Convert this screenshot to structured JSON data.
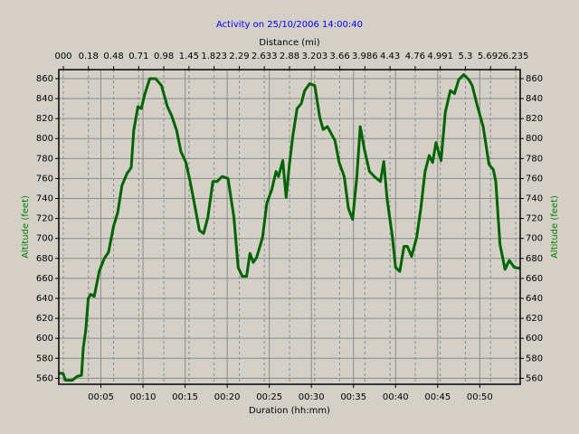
{
  "chart_data": {
    "type": "line",
    "title": "Activity on 25/10/2006 14:00:40",
    "xlabel": "Duration (hh:mm)",
    "x2label": "Distance (mi)",
    "ylabel": "Altitude (feet)",
    "y2label": "Altitude (feet)",
    "x2ticks": [
      "000",
      "0.18",
      "0.48",
      "0.71",
      "0.98",
      "1.45",
      "1.823",
      "2.29",
      "2.633",
      "2.88",
      "3.203",
      "3.66",
      "3.986",
      "4.43",
      "4.76",
      "4.991",
      "5.3",
      "5.692",
      "6.235"
    ],
    "xlim": [
      0,
      54.8
    ],
    "xticks": [
      {
        "value": 5,
        "label": "00:05"
      },
      {
        "value": 10,
        "label": "00:10"
      },
      {
        "value": 15,
        "label": "00:15"
      },
      {
        "value": 20,
        "label": "00:20"
      },
      {
        "value": 25,
        "label": "00:25"
      },
      {
        "value": 30,
        "label": "00:30"
      },
      {
        "value": 35,
        "label": "00:35"
      },
      {
        "value": 40,
        "label": "00:40"
      },
      {
        "value": 45,
        "label": "00:45"
      },
      {
        "value": 50,
        "label": "00:50"
      }
    ],
    "ylim": [
      554,
      869
    ],
    "yticks": [
      560,
      580,
      600,
      620,
      640,
      660,
      680,
      700,
      720,
      740,
      760,
      780,
      800,
      820,
      840,
      860
    ],
    "grid": true,
    "series": [
      {
        "color": "#006400",
        "x": [
          0,
          0.5,
          0.8,
          1.6,
          2.2,
          2.7,
          2.9,
          3.2,
          3.5,
          3.8,
          4.2,
          4.4,
          4.8,
          5.4,
          5.9,
          6.5,
          7.0,
          7.5,
          8.1,
          8.6,
          8.9,
          9.4,
          9.8,
          10.2,
          10.8,
          11.5,
          12.2,
          12.9,
          13.4,
          14.0,
          14.5,
          15.1,
          15.6,
          16.1,
          16.7,
          17.2,
          17.7,
          18.3,
          18.8,
          19.4,
          20.1,
          20.8,
          21.3,
          21.8,
          22.3,
          22.7,
          23.1,
          23.5,
          24.2,
          24.7,
          25.3,
          25.8,
          26.1,
          26.6,
          27.0,
          27.4,
          27.8,
          28.3,
          28.8,
          29.2,
          29.8,
          30.4,
          31.0,
          31.4,
          31.9,
          32.8,
          33.3,
          33.9,
          34.4,
          34.9,
          35.4,
          35.8,
          36.3,
          36.9,
          37.6,
          38.2,
          38.6,
          39.0,
          39.6,
          40.0,
          40.5,
          41.0,
          41.4,
          41.9,
          42.5,
          43.0,
          43.5,
          44.0,
          44.4,
          44.8,
          45.4,
          45.9,
          46.5,
          47.0,
          47.5,
          48.1,
          48.7,
          49.1,
          49.7,
          50.4,
          51.1,
          51.6,
          51.9,
          52.4,
          53.0,
          53.5,
          54.1,
          54.8
        ],
        "values": [
          565,
          565,
          558,
          558,
          562,
          563,
          590,
          608,
          640,
          644,
          642,
          650,
          667,
          680,
          686,
          712,
          726,
          753,
          765,
          771,
          808,
          832,
          830,
          844,
          860,
          860,
          853,
          832,
          823,
          808,
          787,
          776,
          757,
          735,
          708,
          705,
          721,
          757,
          757,
          762,
          760,
          721,
          671,
          662,
          662,
          685,
          676,
          681,
          701,
          735,
          749,
          767,
          762,
          778,
          741,
          775,
          803,
          830,
          835,
          848,
          855,
          853,
          821,
          809,
          812,
          798,
          776,
          762,
          730,
          719,
          762,
          812,
          789,
          767,
          761,
          757,
          777,
          739,
          703,
          671,
          667,
          692,
          692,
          682,
          701,
          730,
          767,
          783,
          776,
          796,
          778,
          826,
          848,
          845,
          859,
          864,
          859,
          853,
          833,
          812,
          774,
          769,
          757,
          694,
          669,
          678,
          671,
          670
        ]
      }
    ]
  }
}
